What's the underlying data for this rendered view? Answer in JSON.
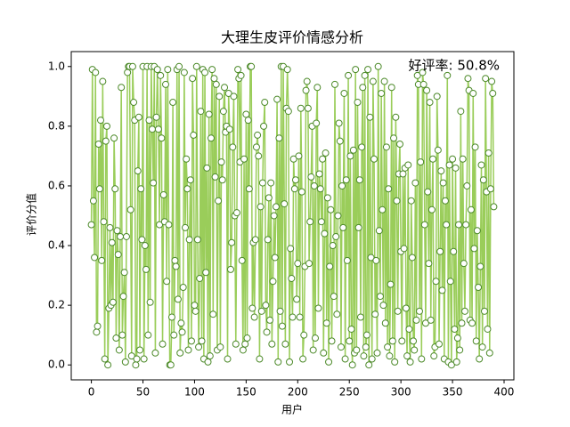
{
  "chart_data": {
    "type": "line",
    "title": "大理生皮评价情感分析",
    "xlabel": "用户",
    "ylabel": "评价分值",
    "annotation": "好评率: 50.8%",
    "xlim": [
      -19.5,
      409.5
    ],
    "xticks": [
      0,
      50,
      100,
      150,
      200,
      250,
      300,
      350,
      400
    ],
    "ylim": [
      -0.05,
      1.05
    ],
    "yticks": [
      {
        "value": 0,
        "label": "0.0"
      },
      0.2,
      0.4,
      0.6,
      0.8,
      {
        "value": 1,
        "label": "1.0"
      }
    ],
    "series": [
      {
        "color": "#9acd5a",
        "marker_edge": "#4d8a2a",
        "values": [
          0.47,
          0.99,
          0.55,
          0.36,
          0.98,
          0.11,
          0.13,
          0.74,
          0.59,
          0.82,
          0.35,
          0.95,
          0.48,
          0.02,
          0.75,
          0.8,
          0.0,
          0.19,
          0.46,
          0.2,
          0.41,
          0.21,
          0.76,
          0.59,
          0.09,
          0.45,
          0.37,
          0.05,
          0.43,
          0.93,
          0.1,
          0.23,
          0.31,
          0.01,
          0.43,
          0.98,
          1.0,
          1.0,
          0.52,
          0.03,
          1.0,
          0.88,
          0.82,
          0.0,
          0.02,
          0.65,
          0.83,
          0.05,
          0.59,
          0.42,
          1.0,
          0.02,
          0.4,
          0.32,
          1.0,
          0.1,
          0.82,
          0.21,
          1.0,
          0.79,
          0.61,
          1.0,
          0.04,
          0.83,
          0.99,
          0.79,
          0.47,
          0.97,
          0.76,
          0.07,
          0.57,
          0.48,
          0.94,
          0.28,
          0.99,
          0.47,
          0.0,
          0.0,
          0.16,
          0.88,
          0.1,
          0.35,
          0.33,
          0.99,
          0.22,
          1.0,
          0.04,
          0.14,
          0.11,
          0.26,
          0.98,
          0.46,
          0.69,
          0.59,
          0.05,
          0.42,
          0.62,
          0.08,
          0.96,
          0.77,
          0.2,
          0.18,
          1.0,
          0.42,
          0.06,
          0.29,
          0.85,
          0.08,
          0.99,
          0.02,
          0.98,
          0.31,
          0.66,
          0.01,
          0.84,
          0.03,
          0.76,
          0.99,
          0.17,
          0.96,
          0.63,
          0.94,
          0.05,
          0.55,
          0.9,
          0.06,
          0.68,
          0.62,
          0.85,
          0.93,
          0.78,
          0.8,
          0.02,
          0.91,
          0.79,
          0.32,
          0.41,
          0.73,
          0.9,
          0.5,
          0.07,
          0.51,
          0.99,
          0.96,
          0.68,
          0.97,
          0.35,
          0.05,
          0.69,
          0.07,
          0.84,
          0.09,
          0.82,
          0.59,
          1.0,
          1.0,
          0.19,
          0.41,
          0.16,
          0.42,
          0.73,
          0.77,
          0.7,
          0.02,
          0.53,
          0.18,
          0.61,
          0.8,
          0.88,
          0.2,
          0.11,
          0.42,
          0.56,
          0.15,
          0.61,
          0.07,
          0.28,
          0.5,
          0.36,
          0.53,
          0.89,
          0.01,
          0.76,
          0.18,
          1.0,
          0.13,
          1.0,
          0.54,
          0.07,
          0.86,
          0.99,
          0.85,
          0.01,
          0.39,
          0.29,
          0.16,
          0.69,
          0.59,
          0.62,
          0.22,
          0.34,
          0.7,
          0.16,
          0.86,
          0.58,
          0.02,
          0.1,
          0.33,
          0.92,
          0.95,
          0.86,
          0.34,
          0.48,
          0.63,
          0.8,
          0.05,
          0.6,
          0.09,
          0.81,
          0.93,
          0.19,
          0.64,
          0.59,
          0.48,
          0.69,
          0.04,
          0.44,
          0.71,
          0.14,
          0.56,
          0.01,
          0.33,
          0.52,
          0.08,
          0.4,
          0.23,
          0.94,
          0.43,
          0.17,
          0.5,
          0.81,
          0.75,
          0.06,
          0.6,
          0.46,
          0.91,
          0.02,
          0.62,
          0.35,
          0.97,
          0.08,
          0.7,
          0.12,
          0.0,
          0.72,
          0.04,
          0.99,
          0.05,
          0.88,
          0.46,
          0.62,
          0.16,
          0.73,
          0.93,
          0.03,
          0.97,
          0.06,
          0.1,
          0.99,
          0.0,
          0.83,
          0.36,
          0.02,
          0.95,
          0.69,
          0.17,
          0.35,
          0.04,
          1.0,
          0.45,
          0.23,
          0.91,
          0.52,
          0.2,
          0.95,
          0.14,
          0.73,
          0.06,
          0.59,
          0.03,
          0.27,
          0.93,
          0.08,
          0.76,
          0.01,
          0.83,
          0.55,
          0.18,
          0.64,
          0.74,
          0.38,
          0.08,
          0.64,
          0.39,
          0.66,
          0.19,
          0.03,
          0.67,
          0.12,
          0.01,
          0.55,
          0.36,
          0.08,
          0.05,
          0.61,
          0.15,
          0.97,
          0.94,
          0.18,
          0.68,
          0.02,
          0.98,
          0.94,
          0.47,
          0.14,
          0.92,
          0.58,
          0.34,
          0.88,
          0.15,
          0.52,
          0.69,
          0.03,
          0.06,
          0.28,
          0.9,
          0.72,
          0.07,
          0.38,
          0.65,
          0.25,
          0.61,
          0.02,
          0.55,
          0.47,
          0.97,
          0.01,
          0.67,
          0.28,
          0.0,
          0.69,
          0.38,
          0.12,
          0.66,
          0.01,
          0.09,
          0.47,
          0.05,
          0.85,
          0.14,
          0.69,
          0.34,
          0.18,
          0.47,
          0.6,
          0.96,
          0.92,
          0.15,
          0.52,
          0.14,
          0.91,
          0.39,
          0.73,
          0.08,
          0.45,
          0.26,
          0.02,
          0.33,
          0.67,
          0.06,
          0.62,
          0.18,
          0.96,
          0.58,
          0.12,
          0.71,
          0.04,
          0.59,
          0.95,
          0.91,
          0.53
        ]
      }
    ]
  }
}
